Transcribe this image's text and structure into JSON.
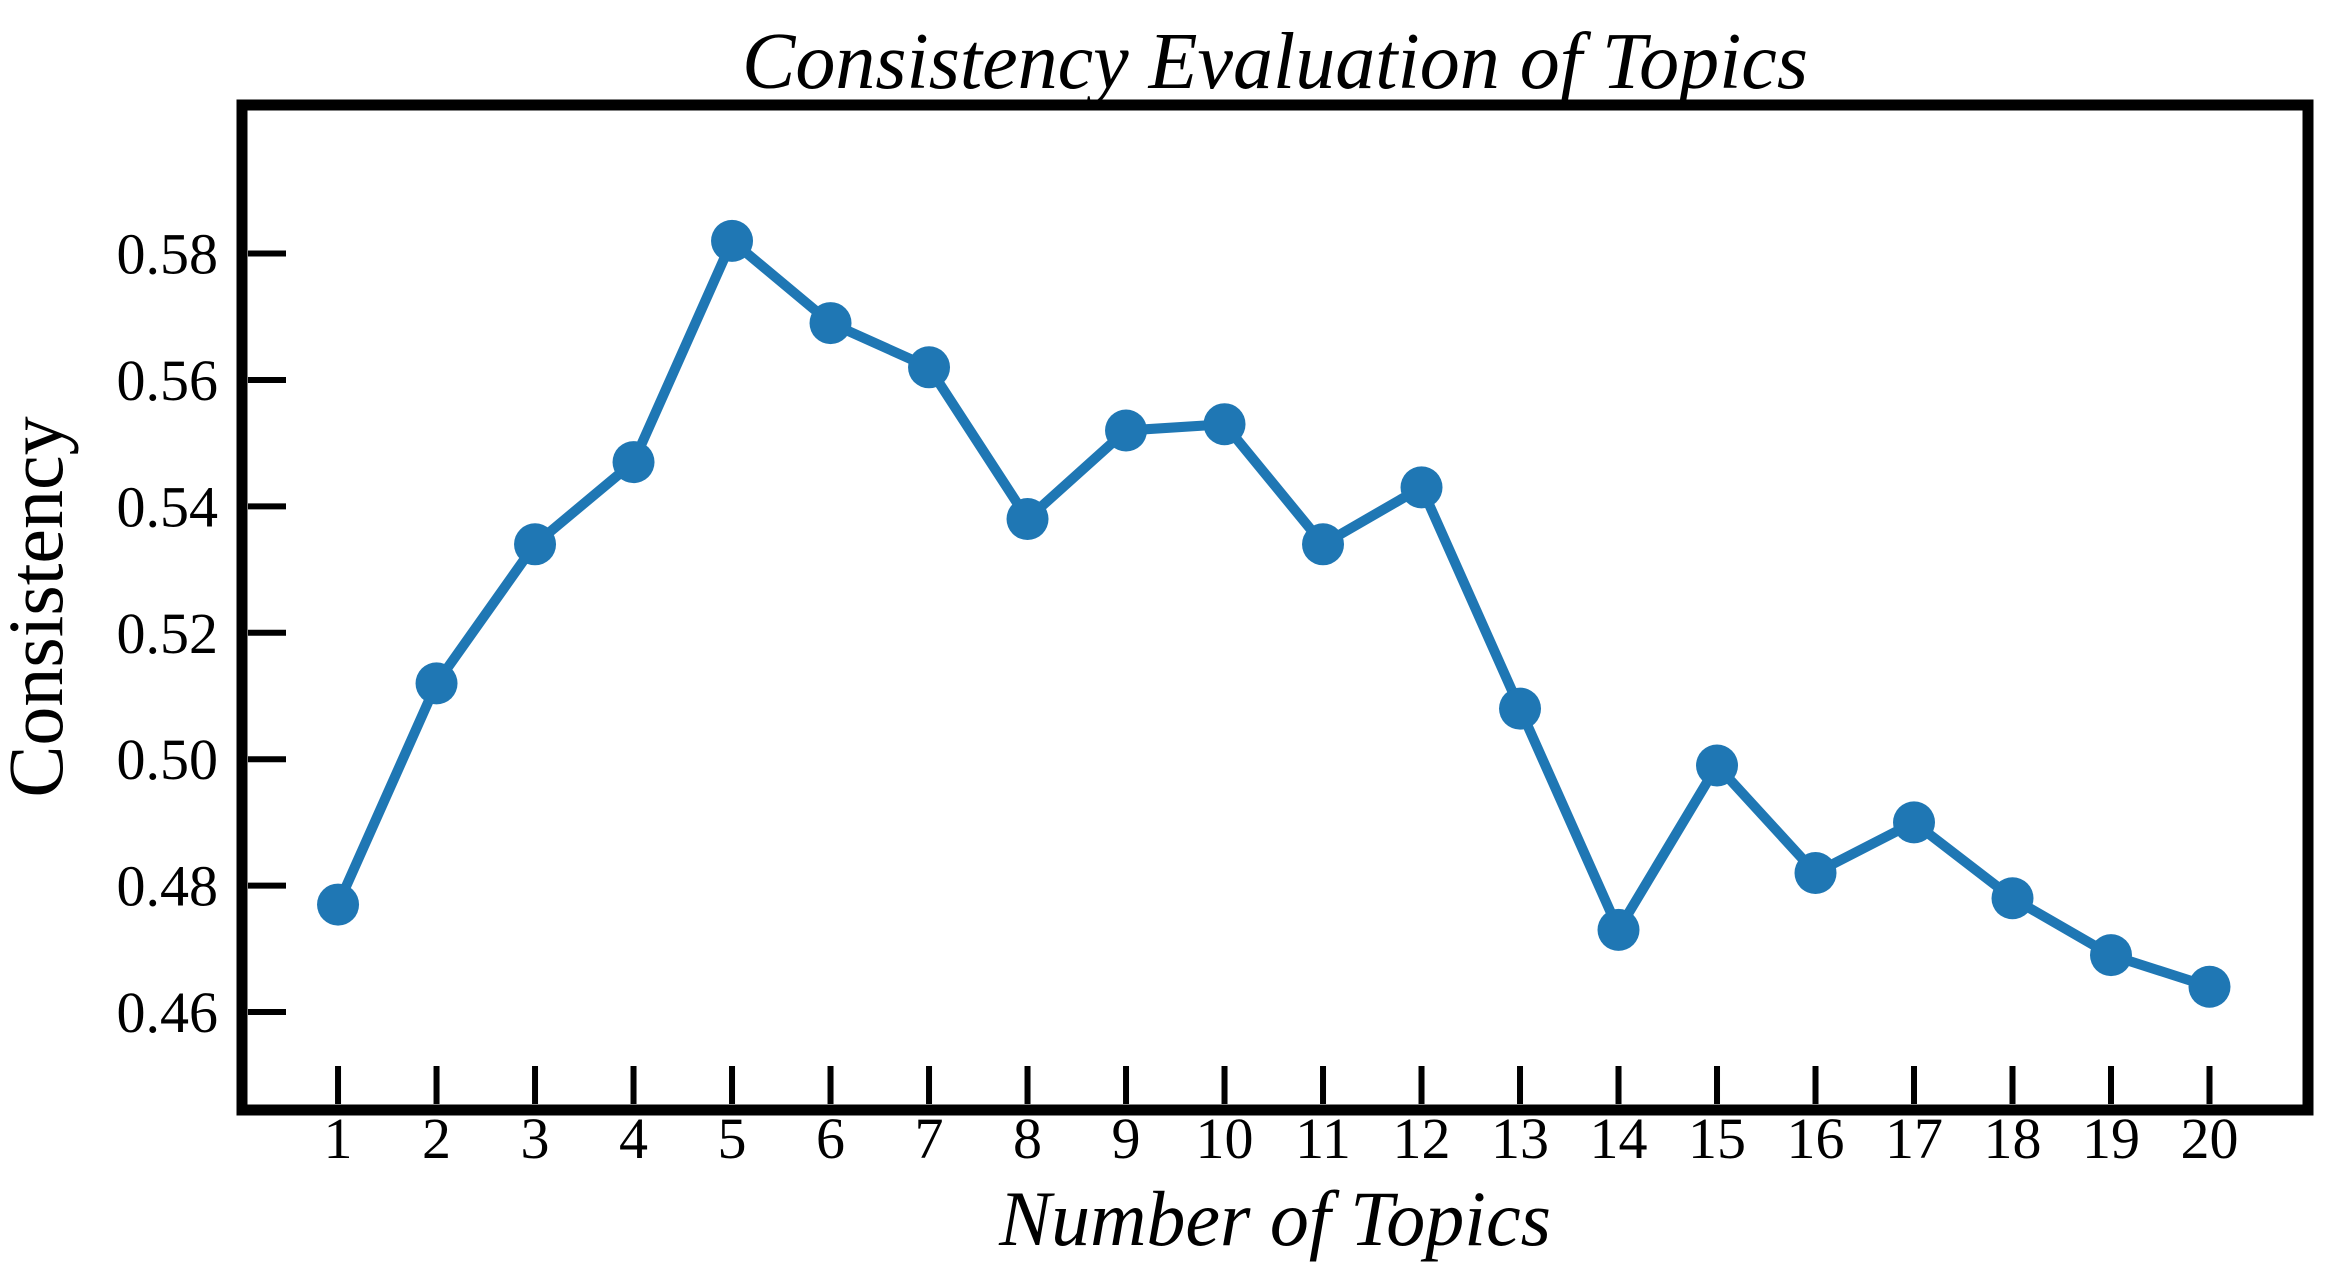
{
  "figure": {
    "background": "#ffffff"
  },
  "chart_data": {
    "type": "line",
    "title": "Consistency Evaluation of Topics",
    "xlabel": "Number of Topics",
    "ylabel": "Consistency",
    "x": [
      1,
      2,
      3,
      4,
      5,
      6,
      7,
      8,
      9,
      10,
      11,
      12,
      13,
      14,
      15,
      16,
      17,
      18,
      19,
      20
    ],
    "values": [
      0.477,
      0.512,
      0.534,
      0.547,
      0.582,
      0.569,
      0.562,
      0.538,
      0.552,
      0.553,
      0.534,
      0.543,
      0.508,
      0.473,
      0.499,
      0.482,
      0.49,
      0.478,
      0.469,
      0.464
    ],
    "xticks": [
      1,
      2,
      3,
      4,
      5,
      6,
      7,
      8,
      9,
      10,
      11,
      12,
      13,
      14,
      15,
      16,
      17,
      18,
      19,
      20
    ],
    "xtick_labels": [
      "1",
      "2",
      "3",
      "4",
      "5",
      "6",
      "7",
      "8",
      "9",
      "10",
      "11",
      "12",
      "13",
      "14",
      "15",
      "16",
      "17",
      "18",
      "19",
      "20"
    ],
    "yticks": [
      0.46,
      0.48,
      0.5,
      0.52,
      0.54,
      0.56,
      0.58
    ],
    "ytick_labels": [
      "0.46",
      "0.48",
      "0.50",
      "0.52",
      "0.54",
      "0.56",
      "0.58"
    ],
    "xlim": [
      0.025,
      21.0
    ],
    "ylim": [
      0.4445,
      0.6035
    ],
    "grid": false,
    "legend": "none",
    "line_color": "#1f77b4",
    "marker": "circle",
    "spine_color": "#000000"
  }
}
